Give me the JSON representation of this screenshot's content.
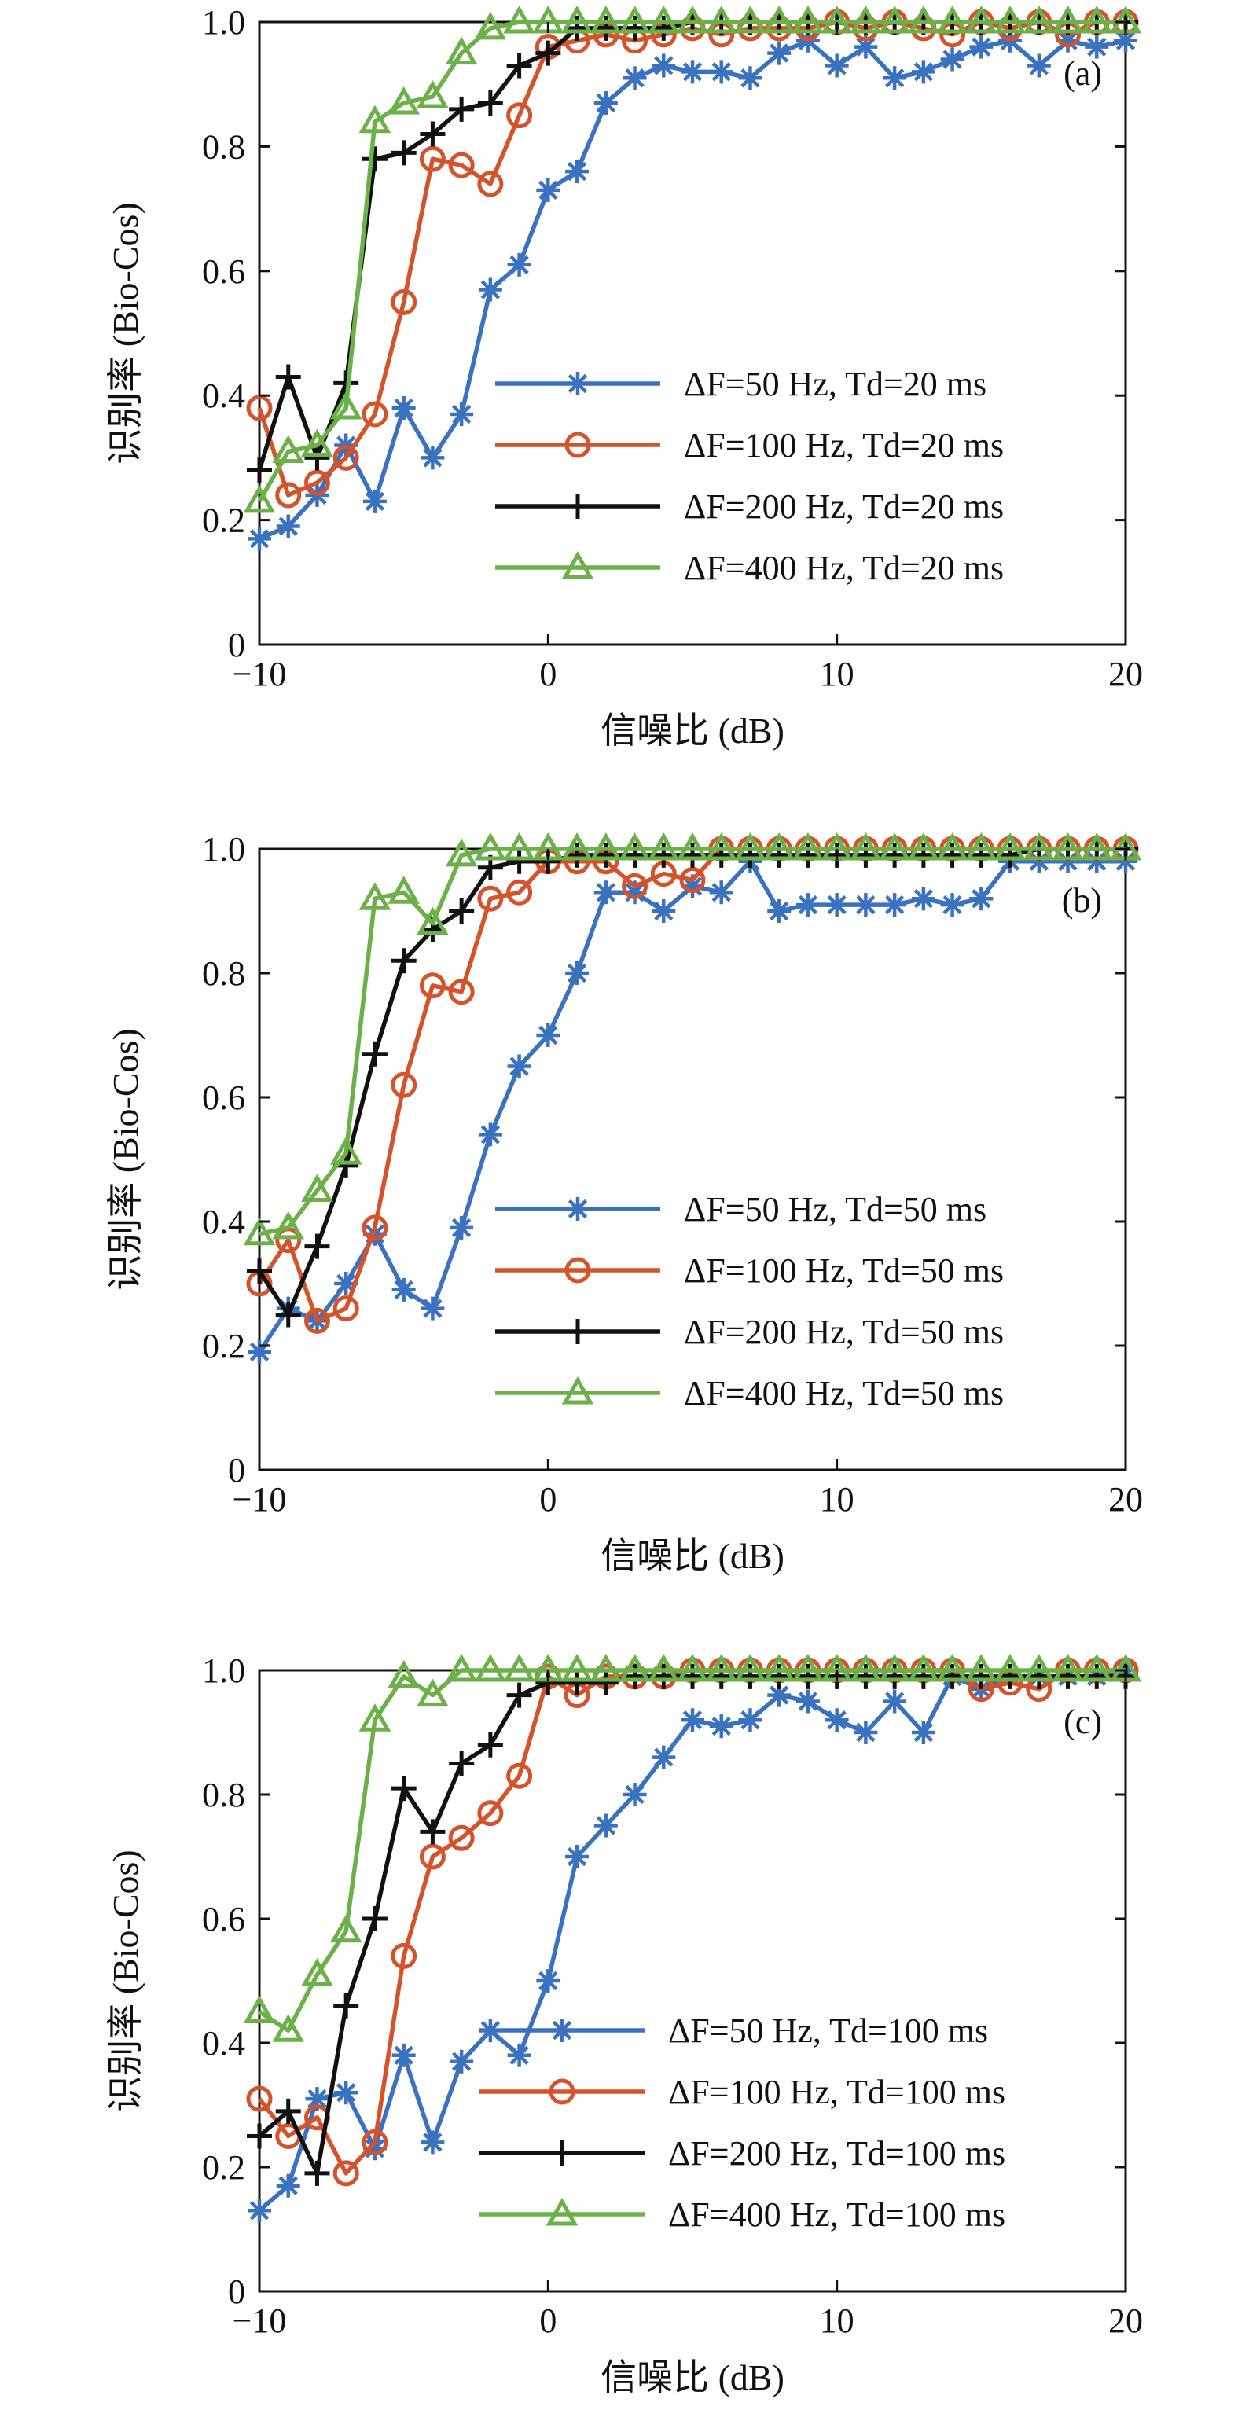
{
  "colors": {
    "blue": "#3a72c0",
    "red": "#d4532a",
    "black": "#111111",
    "green": "#6cb04a"
  },
  "markers": {
    "blue": "asterisk",
    "red": "circle",
    "black": "plus",
    "green": "triangle"
  },
  "chart_data": [
    {
      "type": "line",
      "panel_label": "(a)",
      "xlabel": "信噪比 (dB)",
      "ylabel": "识别率 (Bio-Cos)",
      "xlim": [
        -10,
        20
      ],
      "ylim": [
        0,
        1.0
      ],
      "xticks": [
        -10,
        0,
        10,
        20
      ],
      "xtick_labels": [
        "−10",
        "0",
        "10",
        "20"
      ],
      "yticks": [
        0,
        0.2,
        0.4,
        0.6,
        0.8,
        1.0
      ],
      "ytick_labels": [
        "0",
        "0.2",
        "0.4",
        "0.6",
        "0.8",
        "1.0"
      ],
      "grid": false,
      "legend_position": "lower-right",
      "x": [
        -10,
        -9,
        -8,
        -7,
        -6,
        -5,
        -4,
        -3,
        -2,
        -1,
        0,
        1,
        2,
        3,
        4,
        5,
        6,
        7,
        8,
        9,
        10,
        11,
        12,
        13,
        14,
        15,
        16,
        17,
        18,
        19,
        20
      ],
      "series": [
        {
          "name": "ΔF=50 Hz, Td=20 ms",
          "color": "blue",
          "marker": "asterisk",
          "values": [
            0.17,
            0.19,
            0.24,
            0.32,
            0.23,
            0.38,
            0.3,
            0.37,
            0.57,
            0.61,
            0.73,
            0.76,
            0.87,
            0.91,
            0.93,
            0.92,
            0.92,
            0.91,
            0.95,
            0.97,
            0.93,
            0.96,
            0.91,
            0.92,
            0.94,
            0.96,
            0.97,
            0.93,
            0.97,
            0.96,
            0.97
          ]
        },
        {
          "name": "ΔF=100 Hz, Td=20 ms",
          "color": "red",
          "marker": "circle",
          "values": [
            0.38,
            0.24,
            0.26,
            0.3,
            0.37,
            0.55,
            0.78,
            0.77,
            0.74,
            0.85,
            0.96,
            0.97,
            0.98,
            0.97,
            0.98,
            0.99,
            0.98,
            0.99,
            0.99,
            0.99,
            1.0,
            0.99,
            1.0,
            0.99,
            0.98,
            1.0,
            0.99,
            1.0,
            0.98,
            1.0,
            1.0
          ]
        },
        {
          "name": "ΔF=200 Hz, Td=20 ms",
          "color": "black",
          "marker": "plus",
          "values": [
            0.28,
            0.43,
            0.3,
            0.42,
            0.78,
            0.79,
            0.82,
            0.86,
            0.87,
            0.93,
            0.95,
            0.99,
            0.99,
            0.99,
            0.99,
            1.0,
            1.0,
            1.0,
            1.0,
            1.0,
            1.0,
            1.0,
            1.0,
            1.0,
            1.0,
            1.0,
            1.0,
            1.0,
            1.0,
            1.0,
            1.0
          ]
        },
        {
          "name": "ΔF=400 Hz, Td=20 ms",
          "color": "green",
          "marker": "triangle",
          "values": [
            0.23,
            0.31,
            0.32,
            0.38,
            0.84,
            0.87,
            0.88,
            0.95,
            0.99,
            1.0,
            1.0,
            1.0,
            1.0,
            1.0,
            1.0,
            1.0,
            1.0,
            1.0,
            1.0,
            1.0,
            1.0,
            1.0,
            1.0,
            1.0,
            1.0,
            1.0,
            1.0,
            1.0,
            1.0,
            1.0,
            1.0
          ]
        }
      ]
    },
    {
      "type": "line",
      "panel_label": "(b)",
      "xlabel": "信噪比 (dB)",
      "ylabel": "识别率 (Bio-Cos)",
      "xlim": [
        -10,
        20
      ],
      "ylim": [
        0,
        1.0
      ],
      "xticks": [
        -10,
        0,
        10,
        20
      ],
      "xtick_labels": [
        "−10",
        "0",
        "10",
        "20"
      ],
      "yticks": [
        0,
        0.2,
        0.4,
        0.6,
        0.8,
        1.0
      ],
      "ytick_labels": [
        "0",
        "0.2",
        "0.4",
        "0.6",
        "0.8",
        "1.0"
      ],
      "grid": false,
      "legend_position": "lower-right",
      "x": [
        -10,
        -9,
        -8,
        -7,
        -6,
        -5,
        -4,
        -3,
        -2,
        -1,
        0,
        1,
        2,
        3,
        4,
        5,
        6,
        7,
        8,
        9,
        10,
        11,
        12,
        13,
        14,
        15,
        16,
        17,
        18,
        19,
        20
      ],
      "series": [
        {
          "name": "ΔF=50 Hz, Td=50 ms",
          "color": "blue",
          "marker": "asterisk",
          "values": [
            0.19,
            0.26,
            0.24,
            0.3,
            0.38,
            0.29,
            0.26,
            0.39,
            0.54,
            0.65,
            0.7,
            0.8,
            0.93,
            0.93,
            0.9,
            0.94,
            0.93,
            0.98,
            0.9,
            0.91,
            0.91,
            0.91,
            0.91,
            0.92,
            0.91,
            0.92,
            0.98,
            0.98,
            0.98,
            0.98,
            0.98
          ]
        },
        {
          "name": "ΔF=100 Hz, Td=50 ms",
          "color": "red",
          "marker": "circle",
          "values": [
            0.3,
            0.37,
            0.24,
            0.26,
            0.39,
            0.62,
            0.78,
            0.77,
            0.92,
            0.93,
            0.98,
            0.98,
            0.98,
            0.94,
            0.96,
            0.95,
            1.0,
            1.0,
            1.0,
            1.0,
            1.0,
            1.0,
            1.0,
            1.0,
            1.0,
            1.0,
            1.0,
            1.0,
            1.0,
            1.0,
            1.0
          ]
        },
        {
          "name": "ΔF=200 Hz, Td=50 ms",
          "color": "black",
          "marker": "plus",
          "values": [
            0.32,
            0.25,
            0.36,
            0.49,
            0.67,
            0.82,
            0.87,
            0.9,
            0.97,
            0.98,
            0.98,
            0.99,
            0.99,
            0.99,
            0.99,
            0.99,
            0.99,
            0.99,
            0.99,
            0.99,
            0.99,
            0.99,
            0.99,
            0.99,
            0.99,
            0.99,
            0.99,
            1.0,
            1.0,
            1.0,
            1.0
          ]
        },
        {
          "name": "ΔF=400 Hz, Td=50 ms",
          "color": "green",
          "marker": "triangle",
          "values": [
            0.38,
            0.39,
            0.45,
            0.51,
            0.92,
            0.93,
            0.88,
            0.99,
            1.0,
            1.0,
            1.0,
            1.0,
            1.0,
            1.0,
            1.0,
            1.0,
            1.0,
            1.0,
            1.0,
            1.0,
            1.0,
            1.0,
            1.0,
            1.0,
            1.0,
            1.0,
            1.0,
            1.0,
            1.0,
            1.0,
            1.0
          ]
        }
      ]
    },
    {
      "type": "line",
      "panel_label": "(c)",
      "xlabel": "信噪比 (dB)",
      "ylabel": "识别率 (Bio-Cos)",
      "xlim": [
        -10,
        20
      ],
      "ylim": [
        0,
        1.0
      ],
      "xticks": [
        -10,
        0,
        10,
        20
      ],
      "xtick_labels": [
        "−10",
        "0",
        "10",
        "20"
      ],
      "yticks": [
        0,
        0.2,
        0.4,
        0.6,
        0.8,
        1.0
      ],
      "ytick_labels": [
        "0",
        "0.2",
        "0.4",
        "0.6",
        "0.8",
        "1.0"
      ],
      "grid": false,
      "legend_position": "lower-right",
      "x": [
        -10,
        -9,
        -8,
        -7,
        -6,
        -5,
        -4,
        -3,
        -2,
        -1,
        0,
        1,
        2,
        3,
        4,
        5,
        6,
        7,
        8,
        9,
        10,
        11,
        12,
        13,
        14,
        15,
        16,
        17,
        18,
        19,
        20
      ],
      "series": [
        {
          "name": "ΔF=50 Hz, Td=100 ms",
          "color": "blue",
          "marker": "asterisk",
          "values": [
            0.13,
            0.17,
            0.31,
            0.32,
            0.23,
            0.38,
            0.24,
            0.37,
            0.42,
            0.38,
            0.5,
            0.7,
            0.75,
            0.8,
            0.86,
            0.92,
            0.91,
            0.92,
            0.96,
            0.95,
            0.92,
            0.9,
            0.95,
            0.9,
            0.99,
            0.97,
            0.99,
            0.99,
            0.99,
            0.99,
            1.0
          ]
        },
        {
          "name": "ΔF=100 Hz, Td=100 ms",
          "color": "red",
          "marker": "circle",
          "values": [
            0.31,
            0.25,
            0.28,
            0.19,
            0.24,
            0.54,
            0.7,
            0.73,
            0.77,
            0.83,
            0.99,
            0.96,
            0.99,
            0.99,
            0.99,
            1.0,
            1.0,
            1.0,
            1.0,
            1.0,
            1.0,
            1.0,
            1.0,
            1.0,
            1.0,
            0.97,
            0.98,
            0.97,
            1.0,
            1.0,
            1.0
          ]
        },
        {
          "name": "ΔF=200 Hz, Td=100 ms",
          "color": "black",
          "marker": "plus",
          "values": [
            0.25,
            0.29,
            0.19,
            0.46,
            0.6,
            0.81,
            0.74,
            0.85,
            0.88,
            0.96,
            0.98,
            0.98,
            0.98,
            0.99,
            0.99,
            0.99,
            0.99,
            0.99,
            0.99,
            0.99,
            0.99,
            0.99,
            0.99,
            0.99,
            0.99,
            0.99,
            0.99,
            0.99,
            0.99,
            0.99,
            0.99
          ]
        },
        {
          "name": "ΔF=400 Hz, Td=100 ms",
          "color": "green",
          "marker": "triangle",
          "values": [
            0.45,
            0.42,
            0.51,
            0.58,
            0.92,
            0.99,
            0.96,
            1.0,
            1.0,
            1.0,
            1.0,
            1.0,
            1.0,
            1.0,
            1.0,
            1.0,
            1.0,
            1.0,
            1.0,
            1.0,
            1.0,
            1.0,
            1.0,
            1.0,
            1.0,
            1.0,
            1.0,
            1.0,
            1.0,
            1.0,
            1.0
          ]
        }
      ]
    }
  ]
}
